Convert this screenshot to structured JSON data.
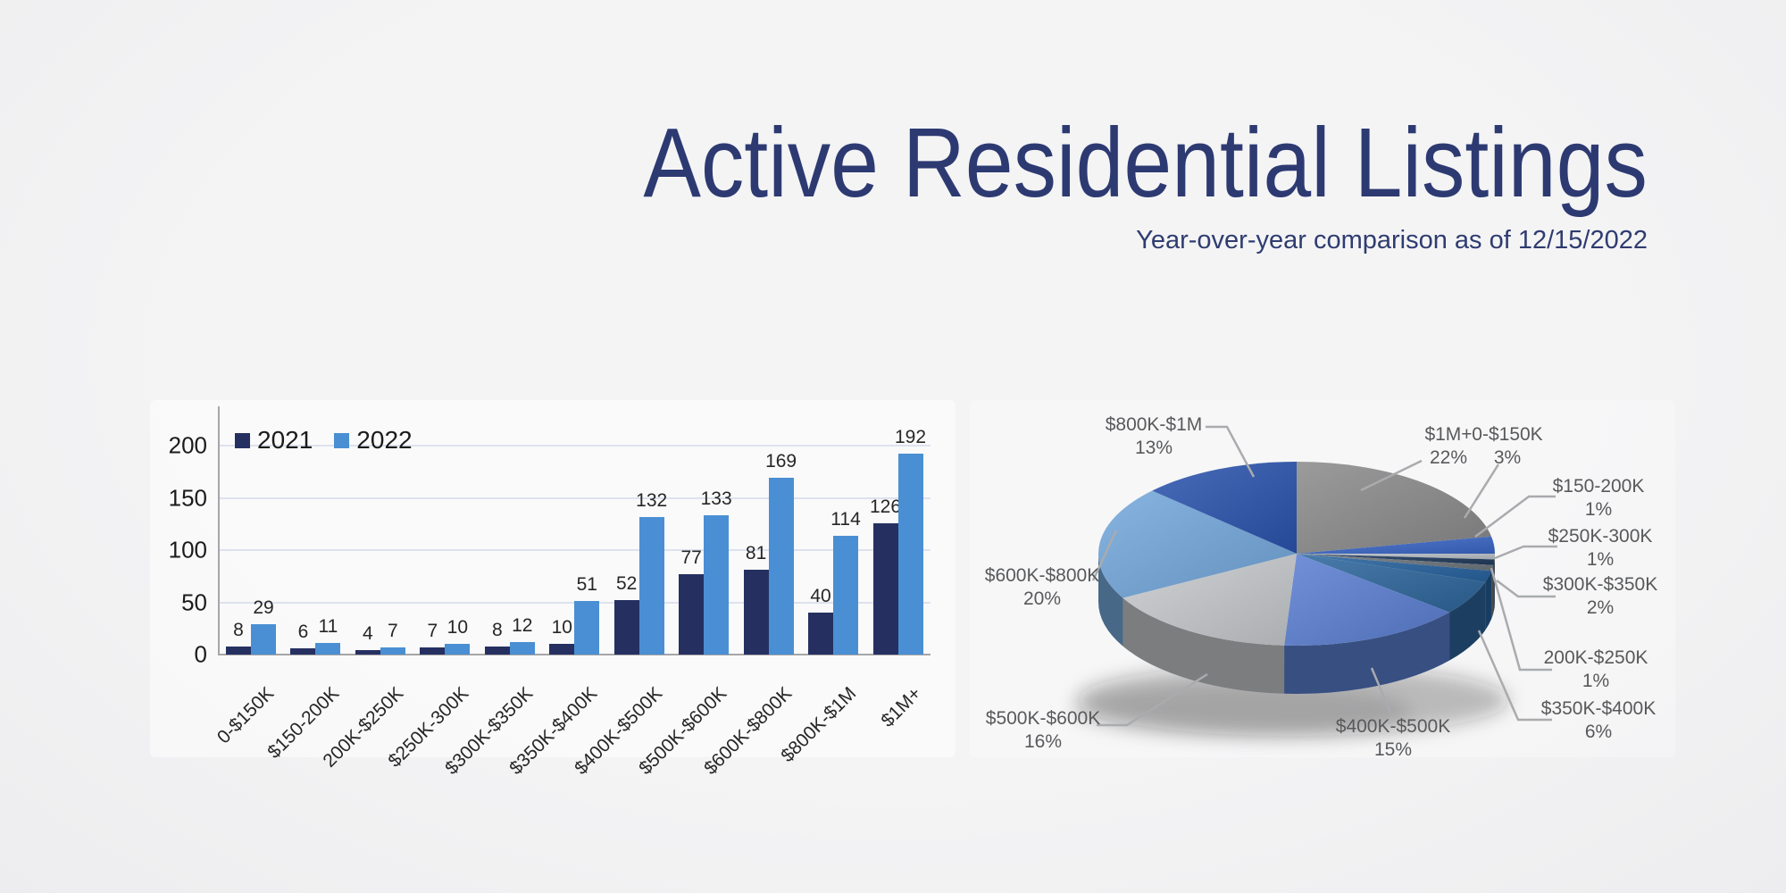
{
  "page": {
    "title": "Active Residential Listings",
    "subtitle": "Year-over-year comparison as of 12/15/2022",
    "title_color": "#2d3a72",
    "background_color": "#f2f2f3"
  },
  "chart_data": [
    {
      "type": "bar",
      "categories": [
        "0-$150K",
        "$150-200K",
        "200K-$250K",
        "$250K-300K",
        "$300K-$350K",
        "$350K-$400K",
        "$400K-$500K",
        "$500K-$600K",
        "$600K-$800K",
        "$800K-$1M",
        "$1M+"
      ],
      "series": [
        {
          "name": "2021",
          "color": "#253061",
          "values": [
            8,
            6,
            4,
            7,
            8,
            10,
            52,
            77,
            81,
            40,
            126
          ]
        },
        {
          "name": "2022",
          "color": "#4a8fd3",
          "values": [
            29,
            11,
            7,
            10,
            12,
            51,
            132,
            133,
            169,
            114,
            192
          ]
        }
      ],
      "ylim": [
        0,
        220
      ],
      "yticks": [
        0,
        50,
        100,
        150,
        200
      ],
      "grid": true,
      "legend_position": "top-left",
      "gridline_color": "#dde2ee",
      "axis_color": "#a6a6a6"
    },
    {
      "type": "pie",
      "style": "3d",
      "direction": "clockwise",
      "start_angle_deg": 0,
      "slices": [
        {
          "label": "$1M+",
          "pct": 22,
          "pct_label": "22%",
          "color": "#8b8b8b"
        },
        {
          "label": "0-$150K",
          "pct": 3,
          "pct_label": "3%",
          "color": "#3a67c8"
        },
        {
          "label": "$150-200K",
          "pct": 1,
          "pct_label": "1%",
          "color": "#b9c0c7"
        },
        {
          "label": "200K-$250K",
          "pct": 1,
          "pct_label": "1%",
          "color": "#203a5c"
        },
        {
          "label": "$250K-300K",
          "pct": 1,
          "pct_label": "1%",
          "color": "#6e777e"
        },
        {
          "label": "$300K-$350K",
          "pct": 2,
          "pct_label": "2%",
          "color": "#27639f"
        },
        {
          "label": "$350K-$400K",
          "pct": 6,
          "pct_label": "6%",
          "color": "#2d669c"
        },
        {
          "label": "$400K-$500K",
          "pct": 15,
          "pct_label": "15%",
          "color": "#5b7fd2"
        },
        {
          "label": "$500K-$600K",
          "pct": 16,
          "pct_label": "16%",
          "color": "#c7cacd"
        },
        {
          "label": "$600K-$800K",
          "pct": 20,
          "pct_label": "20%",
          "color": "#74a8dc"
        },
        {
          "label": "$800K-$1M",
          "pct": 13,
          "pct_label": "13%",
          "color": "#2b54ae"
        }
      ]
    }
  ]
}
